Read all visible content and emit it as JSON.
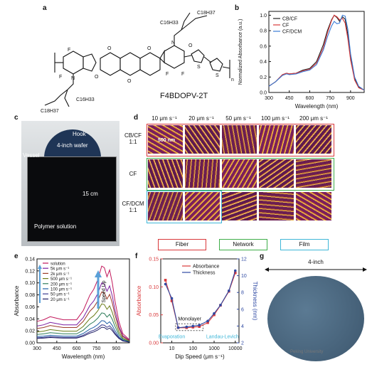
{
  "panel_labels": {
    "a": "a",
    "b": "b",
    "c": "c",
    "d": "d",
    "e": "e",
    "f": "f",
    "g": "g"
  },
  "panel_a": {
    "molecule_name": "F4BDOPV-2T",
    "substituent": "C18H37",
    "substituent_short": "C16H33",
    "atoms": {
      "F": "F",
      "O": "O",
      "N": "N",
      "S": "S",
      "n": "n"
    },
    "colors": {
      "ink": "#111111"
    }
  },
  "panel_c": {
    "labels": {
      "hook": "Hook",
      "wafer": "4-inch wafer",
      "vessel": "Vessel",
      "height": "15 cm",
      "solution": "Polymer solution"
    }
  },
  "panel_d": {
    "columns": [
      "10 μm s⁻¹",
      "20 μm s⁻¹",
      "50 μm s⁻¹",
      "100 μm s⁻¹",
      "200 μm s⁻¹"
    ],
    "rows": [
      {
        "name_line1": "CB/CF",
        "name_line2": "1:1"
      },
      {
        "name_line1": "CF",
        "name_line2": ""
      },
      {
        "name_line1": "CF/DCM",
        "name_line2": "1:1"
      }
    ],
    "scale_text": "500 nm",
    "morphology_boxes": [
      {
        "label": "Fiber",
        "color": "#d9383a"
      },
      {
        "label": "Network",
        "color": "#3fae49"
      },
      {
        "label": "Film",
        "color": "#3fb7d8"
      }
    ]
  },
  "panel_g": {
    "label": "4-inch",
    "watermark": "Peking University"
  },
  "chart_data": [
    {
      "id": "b",
      "type": "line",
      "xlabel": "Wavelength (nm)",
      "ylabel": "Normalized Absorbance (a.u.)",
      "xlim": [
        300,
        1000
      ],
      "ylim": [
        0,
        1.05
      ],
      "xticks": [
        300,
        450,
        600,
        750,
        900
      ],
      "yticks": [
        0.0,
        0.2,
        0.4,
        0.6,
        0.8,
        1.0
      ],
      "legend": "top-left",
      "series": [
        {
          "name": "CB/CF",
          "color": "#222222",
          "x": [
            300,
            350,
            400,
            430,
            450,
            500,
            550,
            600,
            650,
            700,
            730,
            760,
            780,
            800,
            820,
            840,
            860,
            880,
            900,
            930,
            960,
            1000
          ],
          "y": [
            0.08,
            0.14,
            0.23,
            0.25,
            0.24,
            0.25,
            0.29,
            0.31,
            0.4,
            0.62,
            0.8,
            0.94,
            1.0,
            0.97,
            0.92,
            0.98,
            0.95,
            0.75,
            0.45,
            0.18,
            0.07,
            0.03
          ]
        },
        {
          "name": "CF",
          "color": "#d9383a",
          "x": [
            300,
            350,
            400,
            430,
            450,
            500,
            550,
            600,
            650,
            700,
            730,
            760,
            780,
            800,
            820,
            840,
            860,
            880,
            900,
            930,
            960,
            1000
          ],
          "y": [
            0.08,
            0.14,
            0.23,
            0.25,
            0.24,
            0.25,
            0.28,
            0.3,
            0.38,
            0.58,
            0.77,
            0.93,
            1.0,
            0.98,
            0.94,
            0.96,
            0.9,
            0.7,
            0.42,
            0.16,
            0.06,
            0.03
          ]
        },
        {
          "name": "CF/DCM",
          "color": "#3a7bd5",
          "x": [
            300,
            350,
            400,
            430,
            450,
            500,
            550,
            600,
            650,
            700,
            730,
            760,
            780,
            800,
            820,
            840,
            860,
            880,
            900,
            930,
            960,
            1000
          ],
          "y": [
            0.08,
            0.14,
            0.22,
            0.24,
            0.23,
            0.24,
            0.27,
            0.29,
            0.36,
            0.55,
            0.72,
            0.86,
            0.92,
            0.89,
            0.9,
            1.0,
            0.99,
            0.82,
            0.5,
            0.2,
            0.08,
            0.03
          ]
        }
      ]
    },
    {
      "id": "e",
      "type": "line",
      "xlabel": "Wavelength (nm)",
      "ylabel": "Absorbance",
      "xlim": [
        300,
        1000
      ],
      "ylim": [
        0,
        0.14
      ],
      "xticks": [
        300,
        450,
        600,
        750,
        900
      ],
      "yticks": [
        0.0,
        0.02,
        0.04,
        0.06,
        0.08,
        0.1,
        0.12,
        0.14
      ],
      "legend": "top-left",
      "annotation": "Speed Up",
      "series": [
        {
          "name": "solution",
          "color": "#c2185b",
          "scale": 0.128
        },
        {
          "name": "5k μm s⁻¹",
          "color": "#7b1fa2",
          "scale": 0.1
        },
        {
          "name": "2k μm s⁻¹",
          "color": "#9c3d2a",
          "scale": 0.085
        },
        {
          "name": "500 μm s⁻¹",
          "color": "#6b7d1a",
          "scale": 0.065
        },
        {
          "name": "200 μm s⁻¹",
          "color": "#2e7d5b",
          "scale": 0.05
        },
        {
          "name": "100 μm s⁻¹",
          "color": "#1f5fa8",
          "scale": 0.037
        },
        {
          "name": "50 μm s⁻¹",
          "color": "#3b3b8f",
          "scale": 0.03
        },
        {
          "name": "20 μm s⁻¹",
          "color": "#222266",
          "scale": 0.026
        }
      ],
      "shape_x": [
        300,
        350,
        400,
        450,
        500,
        550,
        600,
        650,
        700,
        730,
        760,
        790,
        810,
        830,
        850,
        870,
        890,
        920,
        950,
        1000
      ],
      "shape_y": [
        0.28,
        0.3,
        0.34,
        0.32,
        0.3,
        0.3,
        0.3,
        0.42,
        0.62,
        0.7,
        0.82,
        1.0,
        0.98,
        0.86,
        0.95,
        0.78,
        0.55,
        0.28,
        0.12,
        0.04
      ]
    },
    {
      "id": "f",
      "type": "line",
      "xlabel": "Dip Speed (μm s⁻¹)",
      "ylabel_left": "Absorbance",
      "ylabel_right": "Thickness (nm)",
      "xscale": "log",
      "xlim": [
        3,
        15000
      ],
      "xticks": [
        10,
        100,
        1000,
        10000
      ],
      "ylim_left": [
        0,
        0.15
      ],
      "yticks_left": [
        0.0,
        0.05,
        0.1,
        0.15
      ],
      "ylim_right": [
        2,
        12
      ],
      "yticks_right": [
        2,
        4,
        6,
        8,
        10,
        12
      ],
      "legend": "top-center",
      "annotations": {
        "monolayer": "Monolayer",
        "evaporation": "Evaporation",
        "landau": "Landau-Levich"
      },
      "series": [
        {
          "name": "Absorbance",
          "color": "#d9383a",
          "axis": "left",
          "x": [
            5,
            10,
            20,
            50,
            100,
            200,
            500,
            1000,
            2000,
            5000,
            10000
          ],
          "y": [
            0.112,
            0.075,
            0.027,
            0.027,
            0.028,
            0.029,
            0.036,
            0.05,
            0.067,
            0.092,
            0.125
          ]
        },
        {
          "name": "Thickness",
          "color": "#2f4aa3",
          "axis": "right",
          "x": [
            5,
            10,
            20,
            50,
            100,
            200,
            500,
            1000,
            2000,
            5000,
            10000
          ],
          "y": [
            9.0,
            7.3,
            3.8,
            3.9,
            4.0,
            4.1,
            4.6,
            5.5,
            6.5,
            8.2,
            10.6
          ]
        }
      ]
    }
  ]
}
